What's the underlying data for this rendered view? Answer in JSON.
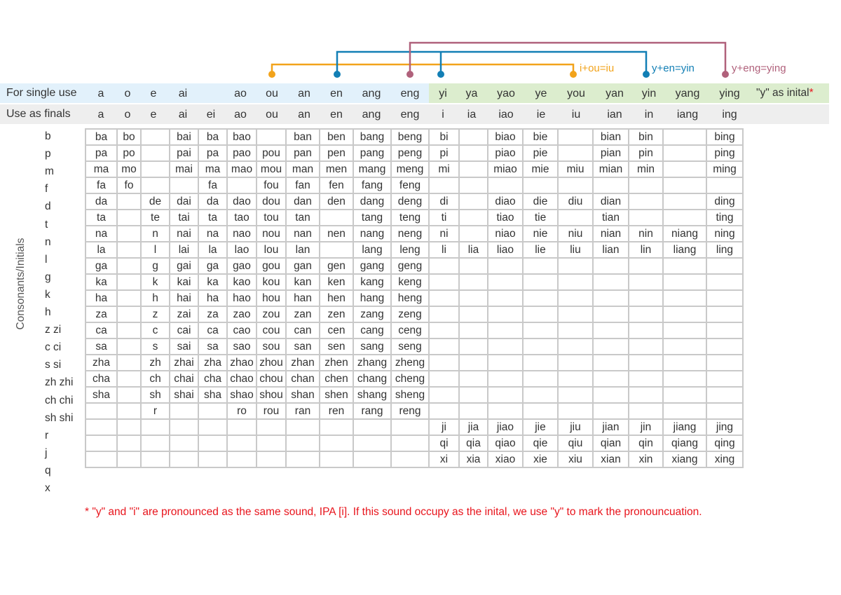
{
  "colors": {
    "orange": "#f2a31b",
    "blue": "#127fb5",
    "mauve": "#b0617b",
    "single_band": "#e2f1fb",
    "yi_band": "#dcedce",
    "finals_band": "#eeeeee",
    "red": "#e8141c",
    "grid_line": "#c9c9c9"
  },
  "annotations": {
    "iou": "i+ou=iu",
    "yen": "y+en=yin",
    "yeng": "y+eng=ying"
  },
  "single_use": {
    "title": "For single use",
    "items": [
      "a",
      "o",
      "e",
      "ai",
      "",
      "ao",
      "ou",
      "an",
      "en",
      "ang",
      "eng",
      "yi",
      "ya",
      "yao",
      "ye",
      "you",
      "yan",
      "yin",
      "yang",
      "ying"
    ],
    "last_label": "\"y\" as inital",
    "star": "*"
  },
  "finals": {
    "title": "Use as finals",
    "items": [
      "a",
      "o",
      "e",
      "ai",
      "ei",
      "ao",
      "ou",
      "an",
      "en",
      "ang",
      "eng",
      "i",
      "ia",
      "iao",
      "ie",
      "iu",
      "ian",
      "in",
      "iang",
      "ing"
    ]
  },
  "axis_label": "Consonants/Initials",
  "initials": [
    "b",
    "p",
    "m",
    "f",
    "d",
    "t",
    "n",
    "l",
    "g",
    "k",
    "h",
    "z zi",
    "c ci",
    "s si",
    "zh zhi",
    "ch chi",
    "sh shi",
    "r",
    "j",
    "q",
    "x"
  ],
  "table": [
    [
      "ba",
      "bo",
      "",
      "bai",
      "ba",
      "bao",
      "",
      "ban",
      "ben",
      "bang",
      "beng",
      "bi",
      "",
      "biao",
      "bie",
      "",
      "bian",
      "bin",
      "",
      "bing"
    ],
    [
      "pa",
      "po",
      "",
      "pai",
      "pa",
      "pao",
      "pou",
      "pan",
      "pen",
      "pang",
      "peng",
      "pi",
      "",
      "piao",
      "pie",
      "",
      "pian",
      "pin",
      "",
      "ping"
    ],
    [
      "ma",
      "mo",
      "",
      "mai",
      "ma",
      "mao",
      "mou",
      "man",
      "men",
      "mang",
      "meng",
      "mi",
      "",
      "miao",
      "mie",
      "miu",
      "mian",
      "min",
      "",
      "ming"
    ],
    [
      "fa",
      "fo",
      "",
      "",
      "fa",
      "",
      "fou",
      "fan",
      "fen",
      "fang",
      "feng",
      "",
      "",
      "",
      "",
      "",
      "",
      "",
      "",
      ""
    ],
    [
      "da",
      "",
      "de",
      "dai",
      "da",
      "dao",
      "dou",
      "dan",
      "den",
      "dang",
      "deng",
      "di",
      "",
      "diao",
      "die",
      "diu",
      "dian",
      "",
      "",
      "ding"
    ],
    [
      "ta",
      "",
      "te",
      "tai",
      "ta",
      "tao",
      "tou",
      "tan",
      "",
      "tang",
      "teng",
      "ti",
      "",
      "tiao",
      "tie",
      "",
      "tian",
      "",
      "",
      "ting"
    ],
    [
      "na",
      "",
      "n",
      "nai",
      "na",
      "nao",
      "nou",
      "nan",
      "nen",
      "nang",
      "neng",
      "ni",
      "",
      "niao",
      "nie",
      "niu",
      "nian",
      "nin",
      "niang",
      "ning"
    ],
    [
      "la",
      "",
      "l",
      "lai",
      "la",
      "lao",
      "lou",
      "lan",
      "",
      "lang",
      "leng",
      "li",
      "lia",
      "liao",
      "lie",
      "liu",
      "lian",
      "lin",
      "liang",
      "ling"
    ],
    [
      "ga",
      "",
      "g",
      "gai",
      "ga",
      "gao",
      "gou",
      "gan",
      "gen",
      "gang",
      "geng",
      "",
      "",
      "",
      "",
      "",
      "",
      "",
      "",
      ""
    ],
    [
      "ka",
      "",
      "k",
      "kai",
      "ka",
      "kao",
      "kou",
      "kan",
      "ken",
      "kang",
      "keng",
      "",
      "",
      "",
      "",
      "",
      "",
      "",
      "",
      ""
    ],
    [
      "ha",
      "",
      "h",
      "hai",
      "ha",
      "hao",
      "hou",
      "han",
      "hen",
      "hang",
      "heng",
      "",
      "",
      "",
      "",
      "",
      "",
      "",
      "",
      ""
    ],
    [
      "za",
      "",
      "z",
      "zai",
      "za",
      "zao",
      "zou",
      "zan",
      "zen",
      "zang",
      "zeng",
      "",
      "",
      "",
      "",
      "",
      "",
      "",
      "",
      ""
    ],
    [
      "ca",
      "",
      "c",
      "cai",
      "ca",
      "cao",
      "cou",
      "can",
      "cen",
      "cang",
      "ceng",
      "",
      "",
      "",
      "",
      "",
      "",
      "",
      "",
      ""
    ],
    [
      "sa",
      "",
      "s",
      "sai",
      "sa",
      "sao",
      "sou",
      "san",
      "sen",
      "sang",
      "seng",
      "",
      "",
      "",
      "",
      "",
      "",
      "",
      "",
      ""
    ],
    [
      "zha",
      "",
      "zh",
      "zhai",
      "zha",
      "zhao",
      "zhou",
      "zhan",
      "zhen",
      "zhang",
      "zheng",
      "",
      "",
      "",
      "",
      "",
      "",
      "",
      "",
      ""
    ],
    [
      "cha",
      "",
      "ch",
      "chai",
      "cha",
      "chao",
      "chou",
      "chan",
      "chen",
      "chang",
      "cheng",
      "",
      "",
      "",
      "",
      "",
      "",
      "",
      "",
      ""
    ],
    [
      "sha",
      "",
      "sh",
      "shai",
      "sha",
      "shao",
      "shou",
      "shan",
      "shen",
      "shang",
      "sheng",
      "",
      "",
      "",
      "",
      "",
      "",
      "",
      "",
      ""
    ],
    [
      "",
      "",
      "r",
      "",
      "",
      "ro",
      "rou",
      "ran",
      "ren",
      "rang",
      "reng",
      "",
      "",
      "",
      "",
      "",
      "",
      "",
      "",
      ""
    ],
    [
      "",
      "",
      "",
      "",
      "",
      "",
      "",
      "",
      "",
      "",
      "",
      "ji",
      "jia",
      "jiao",
      "jie",
      "jiu",
      "jian",
      "jin",
      "jiang",
      "jing"
    ],
    [
      "",
      "",
      "",
      "",
      "",
      "",
      "",
      "",
      "",
      "",
      "",
      "qi",
      "qia",
      "qiao",
      "qie",
      "qiu",
      "qian",
      "qin",
      "qiang",
      "qing"
    ],
    [
      "",
      "",
      "",
      "",
      "",
      "",
      "",
      "",
      "",
      "",
      "",
      "xi",
      "xia",
      "xiao",
      "xie",
      "xiu",
      "xian",
      "xin",
      "xiang",
      "xing"
    ]
  ],
  "footnote": "* \"y\" and \"i\" are pronounced as the same sound, IPA [i]. If this sound occupy as the inital, we use \"y\" to mark the pronouncuation."
}
